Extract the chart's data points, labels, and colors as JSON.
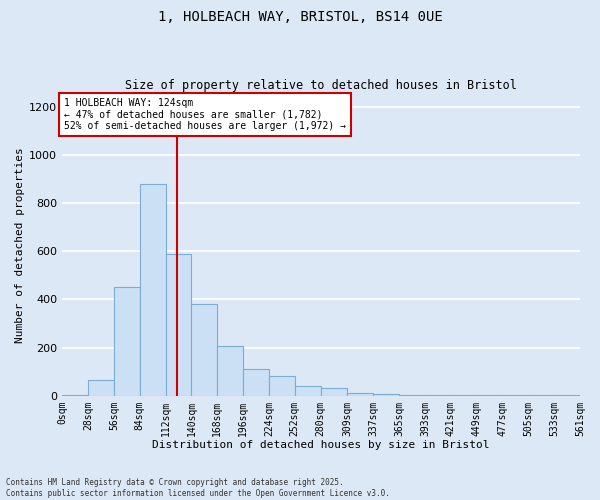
{
  "title_line1": "1, HOLBEACH WAY, BRISTOL, BS14 0UE",
  "title_line2": "Size of property relative to detached houses in Bristol",
  "xlabel": "Distribution of detached houses by size in Bristol",
  "ylabel": "Number of detached properties",
  "bar_color": "#cce0f5",
  "bar_edge_color": "#7aadd4",
  "background_color": "#dce8f5",
  "fig_background": "#dce8f5",
  "grid_color": "#ffffff",
  "bin_edges": [
    0,
    28,
    56,
    84,
    112,
    140,
    168,
    196,
    224,
    252,
    280,
    309,
    337,
    365,
    393,
    421,
    449,
    477,
    505,
    533,
    561
  ],
  "bin_labels": [
    "0sqm",
    "28sqm",
    "56sqm",
    "84sqm",
    "112sqm",
    "140sqm",
    "168sqm",
    "196sqm",
    "224sqm",
    "252sqm",
    "280sqm",
    "309sqm",
    "337sqm",
    "365sqm",
    "393sqm",
    "421sqm",
    "449sqm",
    "477sqm",
    "505sqm",
    "533sqm",
    "561sqm"
  ],
  "hist_values": [
    5,
    65,
    450,
    880,
    590,
    380,
    205,
    110,
    80,
    40,
    30,
    12,
    8,
    5,
    5,
    5,
    5,
    5,
    5,
    5
  ],
  "property_label": "1 HOLBEACH WAY: 124sqm",
  "annotation_line1": "← 47% of detached houses are smaller (1,782)",
  "annotation_line2": "52% of semi-detached houses are larger (1,972) →",
  "vline_x": 124,
  "ylim": [
    0,
    1250
  ],
  "yticks": [
    0,
    200,
    400,
    600,
    800,
    1000,
    1200
  ],
  "footnote_line1": "Contains HM Land Registry data © Crown copyright and database right 2025.",
  "footnote_line2": "Contains public sector information licensed under the Open Government Licence v3.0.",
  "annotation_box_facecolor": "#ffffff",
  "annotation_box_edge": "#cc0000",
  "vline_color": "#cc0000"
}
